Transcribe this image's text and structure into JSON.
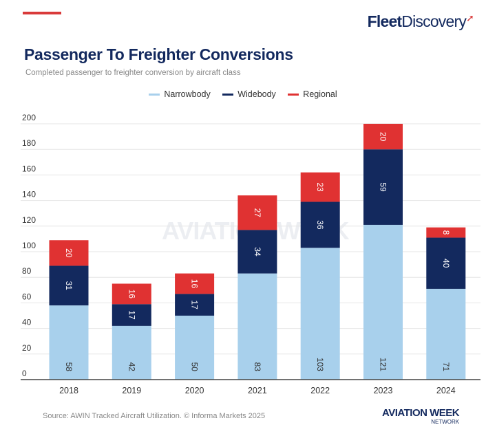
{
  "brand": {
    "logo_bold": "Fleet",
    "logo_light": "Discovery",
    "footer_logo": "AVIATION WEEK",
    "footer_logo_sub": "NETWORK",
    "watermark": "AVIATION WEEK"
  },
  "colors": {
    "narrowbody": "#a8d0ec",
    "widebody": "#13295e",
    "regional": "#e03232",
    "accent": "#d93a3a"
  },
  "source": "Source: AWIN Tracked Aircraft Utilization. © Informa Markets 2025",
  "chart_data": {
    "type": "bar",
    "stacked": true,
    "title": "Passenger To Freighter Conversions",
    "subtitle": "Completed passenger to freighter conversion by aircraft class",
    "categories": [
      "2018",
      "2019",
      "2020",
      "2021",
      "2022",
      "2023",
      "2024"
    ],
    "series": [
      {
        "name": "Narrowbody",
        "values": [
          58,
          42,
          50,
          83,
          103,
          121,
          71
        ]
      },
      {
        "name": "Widebody",
        "values": [
          31,
          17,
          17,
          34,
          36,
          59,
          40
        ]
      },
      {
        "name": "Regional",
        "values": [
          20,
          16,
          16,
          27,
          23,
          20,
          8
        ]
      }
    ],
    "ylim": [
      0,
      200
    ],
    "yticks": [
      0,
      20,
      40,
      60,
      80,
      100,
      120,
      140,
      160,
      180,
      200
    ],
    "grid": true,
    "legend": "top-center",
    "data_labels": true
  }
}
